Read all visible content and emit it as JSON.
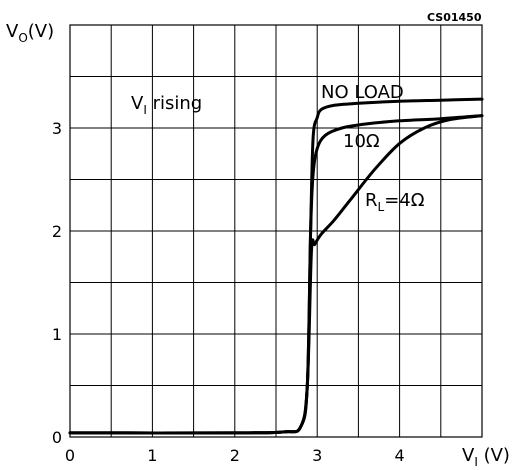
{
  "chart_data": {
    "type": "line",
    "code": "CS01450",
    "xlabel": {
      "main": "V",
      "sub": "I",
      "unit": " (V)"
    },
    "ylabel": {
      "main": "V",
      "sub": "O",
      "unit": "(V)"
    },
    "xlim": [
      0,
      5
    ],
    "ylim": [
      0,
      4
    ],
    "grid": true,
    "x_ticks": [
      {
        "value": 0,
        "label": "0"
      },
      {
        "value": 1,
        "label": "1"
      },
      {
        "value": 2,
        "label": "2"
      },
      {
        "value": 3,
        "label": "3"
      },
      {
        "value": 4,
        "label": "4"
      }
    ],
    "y_ticks": [
      {
        "value": 0,
        "label": "0"
      },
      {
        "value": 1,
        "label": "1"
      },
      {
        "value": 2,
        "label": "2"
      },
      {
        "value": 3,
        "label": "3"
      }
    ],
    "condition": {
      "main": "V",
      "sub": "I",
      "rest": " rising"
    },
    "series": [
      {
        "name": "NO  LOAD",
        "x": [
          0,
          2.0,
          2.6,
          2.8,
          2.88,
          2.92,
          2.95,
          3.0,
          3.05,
          3.2,
          3.5,
          4.0,
          4.5,
          5.0
        ],
        "y": [
          0.04,
          0.04,
          0.05,
          0.1,
          0.5,
          2.0,
          2.9,
          3.1,
          3.18,
          3.22,
          3.24,
          3.26,
          3.27,
          3.28
        ]
      },
      {
        "name": "10Ω",
        "x": [
          0,
          2.0,
          2.6,
          2.8,
          2.88,
          2.92,
          2.95,
          3.0,
          3.1,
          3.3,
          3.6,
          4.0,
          4.5,
          5.0
        ],
        "y": [
          0.04,
          0.04,
          0.05,
          0.1,
          0.5,
          2.0,
          2.55,
          2.8,
          2.93,
          3.0,
          3.04,
          3.07,
          3.09,
          3.12
        ]
      },
      {
        "name": "4Ω",
        "label": {
          "main": "R",
          "sub": "L",
          "rest": "=4Ω"
        },
        "x": [
          0,
          2.0,
          2.6,
          2.8,
          2.88,
          2.93,
          2.97,
          3.05,
          3.2,
          3.4,
          3.7,
          4.0,
          4.3,
          4.6,
          5.0
        ],
        "y": [
          0.04,
          0.04,
          0.05,
          0.1,
          0.5,
          1.8,
          1.87,
          1.97,
          2.1,
          2.3,
          2.6,
          2.85,
          3.0,
          3.08,
          3.12
        ]
      }
    ]
  }
}
